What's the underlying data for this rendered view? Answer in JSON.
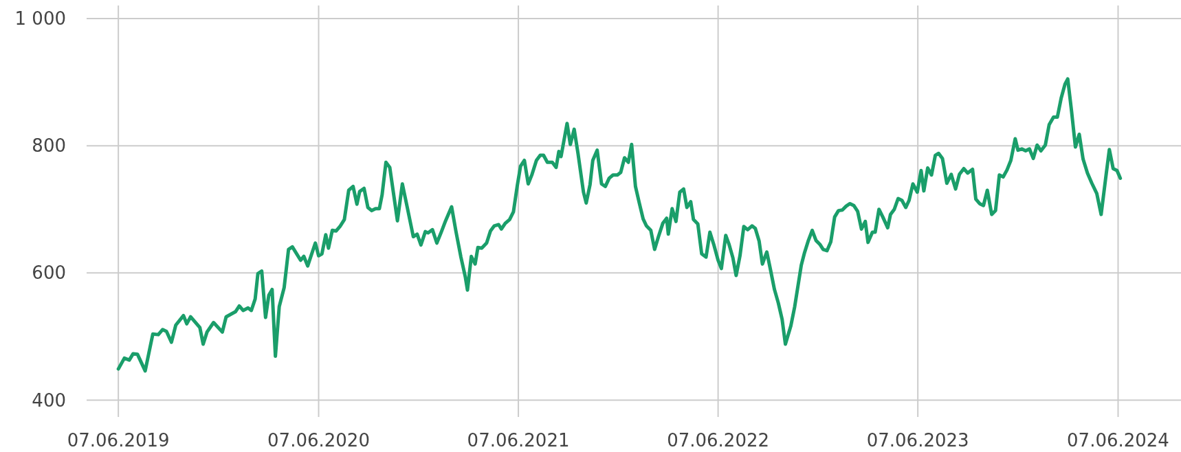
{
  "chart_data": {
    "type": "line",
    "x": [
      "2019-06-07",
      "2019-06-18",
      "2019-06-27",
      "2019-07-04",
      "2019-07-12",
      "2019-07-26",
      "2019-08-09",
      "2019-08-19",
      "2019-08-27",
      "2019-09-03",
      "2019-09-12",
      "2019-09-20",
      "2019-10-04",
      "2019-10-10",
      "2019-10-17",
      "2019-11-03",
      "2019-11-09",
      "2019-11-16",
      "2019-11-28",
      "2019-12-14",
      "2019-12-21",
      "2020-01-07",
      "2020-01-14",
      "2020-01-21",
      "2020-01-30",
      "2020-02-05",
      "2020-02-12",
      "2020-02-17",
      "2020-02-24",
      "2020-03-02",
      "2020-03-08",
      "2020-03-14",
      "2020-03-20",
      "2020-03-27",
      "2020-04-05",
      "2020-04-13",
      "2020-04-20",
      "2020-05-05",
      "2020-05-11",
      "2020-05-18",
      "2020-06-01",
      "2020-06-07",
      "2020-06-13",
      "2020-06-20",
      "2020-06-25",
      "2020-07-02",
      "2020-07-09",
      "2020-07-16",
      "2020-07-24",
      "2020-08-01",
      "2020-08-09",
      "2020-08-16",
      "2020-08-21",
      "2020-08-29",
      "2020-09-05",
      "2020-09-12",
      "2020-09-19",
      "2020-09-26",
      "2020-10-01",
      "2020-10-08",
      "2020-10-15",
      "2020-10-29",
      "2020-11-07",
      "2020-11-16",
      "2020-11-27",
      "2020-12-04",
      "2020-12-11",
      "2020-12-19",
      "2020-12-24",
      "2021-01-01",
      "2021-01-09",
      "2021-01-17",
      "2021-01-25",
      "2021-02-05",
      "2021-02-13",
      "2021-02-22",
      "2021-03-02",
      "2021-03-06",
      "2021-03-13",
      "2021-03-20",
      "2021-03-25",
      "2021-04-01",
      "2021-04-10",
      "2021-04-17",
      "2021-04-24",
      "2021-05-02",
      "2021-05-07",
      "2021-05-14",
      "2021-05-22",
      "2021-05-29",
      "2021-06-05",
      "2021-06-11",
      "2021-06-18",
      "2021-06-25",
      "2021-07-02",
      "2021-07-10",
      "2021-07-17",
      "2021-07-23",
      "2021-07-30",
      "2021-08-08",
      "2021-08-15",
      "2021-08-20",
      "2021-08-24",
      "2021-09-04",
      "2021-09-10",
      "2021-09-17",
      "2021-09-24",
      "2021-10-04",
      "2021-10-09",
      "2021-10-16",
      "2021-10-21",
      "2021-10-29",
      "2021-11-06",
      "2021-11-13",
      "2021-11-20",
      "2021-11-27",
      "2021-12-05",
      "2021-12-11",
      "2021-12-18",
      "2021-12-25",
      "2021-12-31",
      "2022-01-07",
      "2022-01-14",
      "2022-01-21",
      "2022-01-27",
      "2022-02-04",
      "2022-02-11",
      "2022-02-18",
      "2022-02-26",
      "2022-03-05",
      "2022-03-08",
      "2022-03-15",
      "2022-03-22",
      "2022-03-29",
      "2022-04-05",
      "2022-04-11",
      "2022-04-18",
      "2022-04-23",
      "2022-05-01",
      "2022-05-08",
      "2022-05-16",
      "2022-05-23",
      "2022-05-30",
      "2022-06-07",
      "2022-06-13",
      "2022-06-21",
      "2022-06-27",
      "2022-07-04",
      "2022-07-10",
      "2022-07-17",
      "2022-07-24",
      "2022-07-31",
      "2022-08-08",
      "2022-08-14",
      "2022-08-21",
      "2022-08-27",
      "2022-09-04",
      "2022-09-11",
      "2022-09-18",
      "2022-09-25",
      "2022-10-02",
      "2022-10-08",
      "2022-10-18",
      "2022-10-25",
      "2022-11-06",
      "2022-11-12",
      "2022-11-19",
      "2022-11-26",
      "2022-12-03",
      "2022-12-10",
      "2022-12-16",
      "2022-12-23",
      "2022-12-30",
      "2023-01-06",
      "2023-01-13",
      "2023-01-20",
      "2023-01-27",
      "2023-02-03",
      "2023-02-10",
      "2023-02-17",
      "2023-02-24",
      "2023-03-03",
      "2023-03-08",
      "2023-03-16",
      "2023-03-21",
      "2023-03-28",
      "2023-04-04",
      "2023-04-13",
      "2023-04-18",
      "2023-04-25",
      "2023-05-02",
      "2023-05-09",
      "2023-05-16",
      "2023-05-22",
      "2023-05-29",
      "2023-06-06",
      "2023-06-13",
      "2023-06-18",
      "2023-06-25",
      "2023-07-02",
      "2023-07-09",
      "2023-07-15",
      "2023-07-22",
      "2023-07-30",
      "2023-08-07",
      "2023-08-15",
      "2023-08-22",
      "2023-08-30",
      "2023-09-06",
      "2023-09-15",
      "2023-09-21",
      "2023-09-28",
      "2023-10-05",
      "2023-10-12",
      "2023-10-20",
      "2023-10-27",
      "2023-11-03",
      "2023-11-10",
      "2023-11-17",
      "2023-11-24",
      "2023-12-02",
      "2023-12-07",
      "2023-12-14",
      "2023-12-21",
      "2023-12-28",
      "2024-01-04",
      "2024-01-11",
      "2024-01-18",
      "2024-01-26",
      "2024-02-02",
      "2024-02-10",
      "2024-02-17",
      "2024-02-24",
      "2024-03-02",
      "2024-03-07",
      "2024-03-14",
      "2024-03-21",
      "2024-03-28",
      "2024-04-04",
      "2024-04-12",
      "2024-04-20",
      "2024-04-29",
      "2024-05-07",
      "2024-05-15",
      "2024-05-22",
      "2024-05-29",
      "2024-06-05",
      "2024-06-11"
    ],
    "series": [
      {
        "color": "#1a9e6a",
        "values": [
          449,
          466,
          463,
          473,
          472,
          446,
          504,
          503,
          511,
          508,
          491,
          518,
          533,
          520,
          531,
          514,
          488,
          507,
          522,
          507,
          531,
          539,
          548,
          541,
          545,
          541,
          559,
          599,
          603,
          530,
          565,
          574,
          469,
          547,
          577,
          637,
          641,
          620,
          626,
          611,
          647,
          627,
          630,
          660,
          639,
          667,
          666,
          673,
          684,
          730,
          736,
          708,
          728,
          733,
          703,
          698,
          701,
          701,
          723,
          774,
          766,
          682,
          740,
          703,
          657,
          661,
          644,
          665,
          663,
          668,
          647,
          664,
          682,
          704,
          665,
          625,
          594,
          573,
          626,
          614,
          640,
          639,
          647,
          666,
          674,
          676,
          669,
          678,
          684,
          696,
          737,
          768,
          777,
          740,
          755,
          777,
          785,
          785,
          774,
          774,
          766,
          791,
          783,
          835,
          802,
          826,
          788,
          727,
          710,
          739,
          777,
          793,
          740,
          736,
          749,
          754,
          754,
          758,
          781,
          774,
          802,
          736,
          710,
          685,
          674,
          667,
          637,
          657,
          678,
          686,
          661,
          701,
          681,
          727,
          732,
          703,
          712,
          684,
          677,
          630,
          625,
          664,
          645,
          620,
          607,
          659,
          645,
          624,
          596,
          627,
          673,
          668,
          674,
          670,
          650,
          614,
          633,
          604,
          574,
          553,
          527,
          488,
          517,
          547,
          612,
          632,
          651,
          667,
          651,
          645,
          637,
          635,
          649,
          688,
          698,
          699,
          705,
          709,
          706,
          697,
          669,
          681,
          648,
          664,
          664,
          700,
          688,
          671,
          692,
          700,
          717,
          714,
          703,
          714,
          740,
          727,
          761,
          729,
          765,
          754,
          785,
          788,
          780,
          741,
          755,
          732,
          755,
          764,
          757,
          763,
          716,
          709,
          706,
          730,
          692,
          698,
          754,
          751,
          762,
          777,
          811,
          793,
          795,
          792,
          795,
          780,
          801,
          792,
          801,
          833,
          845,
          845,
          875,
          897,
          905,
          854,
          798,
          818,
          779,
          757,
          741,
          725,
          692,
          747,
          794,
          764,
          761,
          749
        ]
      }
    ],
    "xlim": [
      "2019-04-10",
      "2024-10-10"
    ],
    "xticks": [
      {
        "value": "2019-06-07",
        "label": "07.06.2019"
      },
      {
        "value": "2020-06-07",
        "label": "07.06.2020"
      },
      {
        "value": "2021-06-07",
        "label": "07.06.2021"
      },
      {
        "value": "2022-06-07",
        "label": "07.06.2022"
      },
      {
        "value": "2023-06-07",
        "label": "07.06.2023"
      },
      {
        "value": "2024-06-07",
        "label": "07.06.2024"
      }
    ],
    "ylim": [
      380,
      1000
    ],
    "yticks": [
      400,
      600,
      800,
      {
        "value": 1000,
        "label": "1 000"
      }
    ],
    "grid": true,
    "marker": "none",
    "line_style": "solid"
  }
}
